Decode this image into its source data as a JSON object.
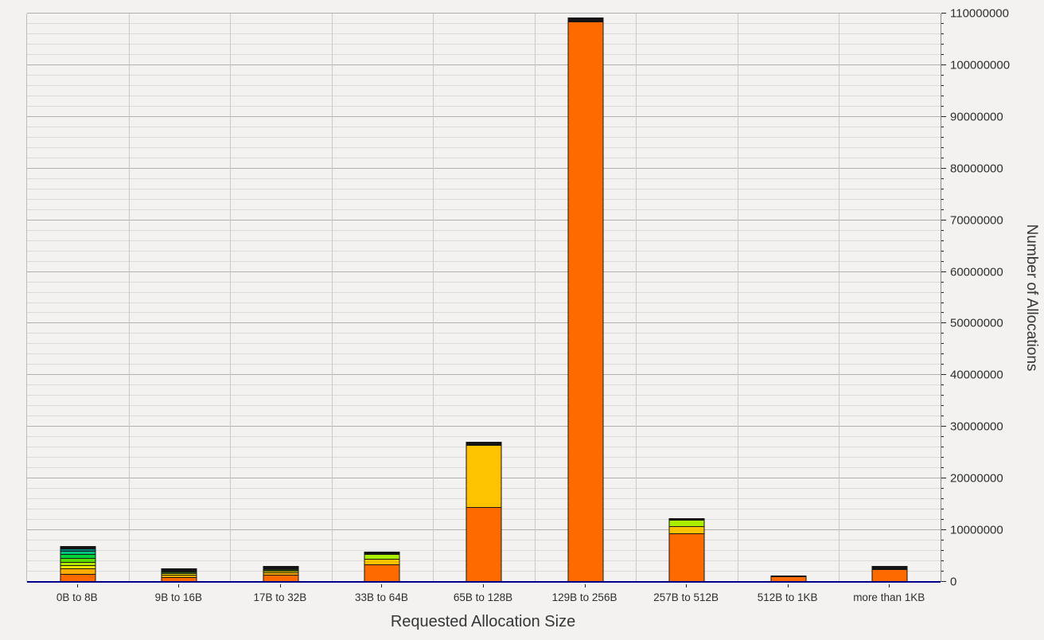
{
  "axes": {
    "x_title": "Requested Allocation Size",
    "y_title": "Number of Allocations"
  },
  "colors": {
    "background": "#f3f2f0",
    "x_axis_line": "#00008b",
    "y_axis_line": "#8c8c8c",
    "grid_major": "#b0b0b0",
    "grid_minor": "#dadada",
    "grid_vertical": "#c9c9c9",
    "bar_outline": "#161616",
    "text": "#2e2e2e"
  },
  "chart_data": {
    "type": "bar",
    "stacked": true,
    "title": "",
    "xlabel": "Requested Allocation Size",
    "ylabel": "Number of Allocations",
    "ylim": [
      0,
      110000000
    ],
    "y_major_step": 10000000,
    "y_minor_step": 2000000,
    "grid": "horizontal major+minor lines, vertical lines at category boundaries",
    "legend_position": "none",
    "y_axis_side": "right",
    "y_tick_labels": [
      "0",
      "10000000",
      "20000000",
      "30000000",
      "40000000",
      "50000000",
      "60000000",
      "70000000",
      "80000000",
      "90000000",
      "100000000",
      "110000000"
    ],
    "categories": [
      "0B to 8B",
      "9B to 16B",
      "17B to 32B",
      "33B to 64B",
      "65B to 128B",
      "129B to 256B",
      "257B to 512B",
      "512B to 1KB",
      "more than 1KB"
    ],
    "bars": [
      {
        "category": "0B to 8B",
        "total": 6910000,
        "segments": [
          {
            "value": 1600000,
            "color": "#ff6a00"
          },
          {
            "value": 1050000,
            "color": "#ffae00"
          },
          {
            "value": 620000,
            "color": "#f2e600"
          },
          {
            "value": 620000,
            "color": "#b0e800"
          },
          {
            "value": 750000,
            "color": "#58dd00"
          },
          {
            "value": 750000,
            "color": "#00d23c"
          },
          {
            "value": 620000,
            "color": "#00c47e"
          },
          {
            "value": 450000,
            "color": "#00807a"
          },
          {
            "value": 450000,
            "color": "#141414"
          }
        ]
      },
      {
        "category": "9B to 16B",
        "total": 2550000,
        "segments": [
          {
            "value": 1000000,
            "color": "#ff6a00"
          },
          {
            "value": 450000,
            "color": "#ffae00"
          },
          {
            "value": 200000,
            "color": "#f2e600"
          },
          {
            "value": 300000,
            "color": "#2e5d14"
          },
          {
            "value": 600000,
            "color": "#141414"
          }
        ]
      },
      {
        "category": "17B to 32B",
        "total": 3100000,
        "segments": [
          {
            "value": 1400000,
            "color": "#ff6a00"
          },
          {
            "value": 450000,
            "color": "#ffae00"
          },
          {
            "value": 300000,
            "color": "#f2e600"
          },
          {
            "value": 350000,
            "color": "#3f5d00"
          },
          {
            "value": 600000,
            "color": "#141414"
          }
        ]
      },
      {
        "category": "33B to 64B",
        "total": 5800000,
        "segments": [
          {
            "value": 3400000,
            "color": "#ff6a00"
          },
          {
            "value": 1100000,
            "color": "#ffc200"
          },
          {
            "value": 900000,
            "color": "#aaee00"
          },
          {
            "value": 400000,
            "color": "#141414"
          }
        ]
      },
      {
        "category": "65B to 128B",
        "total": 27100000,
        "segments": [
          {
            "value": 14500000,
            "color": "#ff6a00"
          },
          {
            "value": 12000000,
            "color": "#ffc200"
          },
          {
            "value": 600000,
            "color": "#141414"
          }
        ]
      },
      {
        "category": "129B to 256B",
        "total": 109300000,
        "segments": [
          {
            "value": 108500000,
            "color": "#ff6a00"
          },
          {
            "value": 800000,
            "color": "#141414"
          }
        ]
      },
      {
        "category": "257B to 512B",
        "total": 12300000,
        "segments": [
          {
            "value": 9400000,
            "color": "#ff6a00"
          },
          {
            "value": 1400000,
            "color": "#ffc200"
          },
          {
            "value": 1200000,
            "color": "#aaee00"
          },
          {
            "value": 300000,
            "color": "#141414"
          }
        ]
      },
      {
        "category": "512B to 1KB",
        "total": 1300000,
        "segments": [
          {
            "value": 1150000,
            "color": "#ff6a00"
          },
          {
            "value": 150000,
            "color": "#141414"
          }
        ]
      },
      {
        "category": "more than 1KB",
        "total": 3150000,
        "segments": [
          {
            "value": 2400000,
            "color": "#ff6a00"
          },
          {
            "value": 750000,
            "color": "#141414"
          }
        ]
      }
    ]
  }
}
